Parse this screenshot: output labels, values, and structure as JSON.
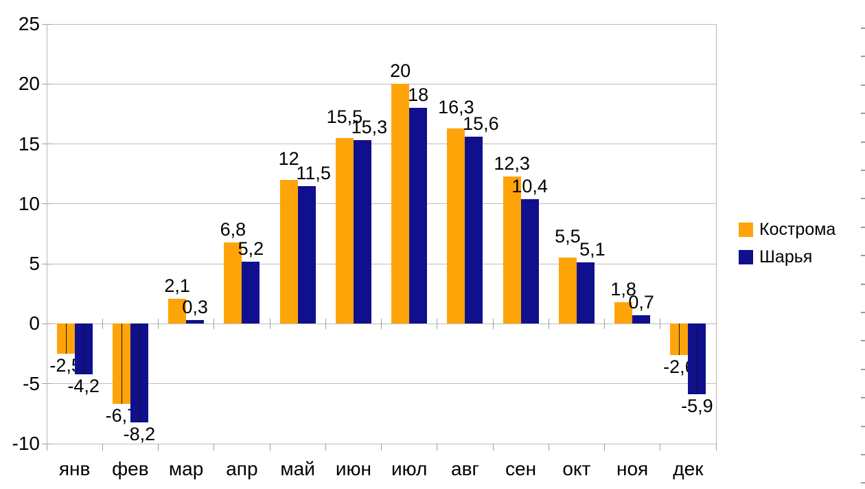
{
  "chart_data": {
    "type": "bar",
    "title": "",
    "categories": [
      "янв",
      "фев",
      "мар",
      "апр",
      "май",
      "июн",
      "июл",
      "авг",
      "сен",
      "окт",
      "ноя",
      "дек"
    ],
    "series": [
      {
        "name": "Кострома",
        "color": "#FFA408",
        "values": [
          -2.5,
          -6.7,
          2.1,
          6.8,
          12,
          15.5,
          20,
          16.3,
          12.3,
          5.5,
          1.8,
          -2.6
        ],
        "labels": [
          "-2,5",
          "-6,7",
          "2,1",
          "6,8",
          "12",
          "15,5",
          "20",
          "16,3",
          "12,3",
          "5,5",
          "1,8",
          "-2,6"
        ]
      },
      {
        "name": "Шарья",
        "color": "#10108E",
        "values": [
          -4.2,
          -8.2,
          0.3,
          5.2,
          11.5,
          15.3,
          18,
          15.6,
          10.4,
          5.1,
          0.7,
          -5.9
        ],
        "labels": [
          "-4,2",
          "-8,2",
          "0,3",
          "5,2",
          "11,5",
          "15,3",
          "18",
          "15,6",
          "10,4",
          "5,1",
          "0,7",
          "-5,9"
        ]
      }
    ],
    "ylim": [
      -10,
      25
    ],
    "yticks": [
      25,
      20,
      15,
      10,
      5,
      0,
      -5,
      -10
    ],
    "ytick_labels": [
      "25",
      "20",
      "15",
      "10",
      "5",
      "0",
      "-5",
      "-10"
    ],
    "grid": "horizontal-major",
    "legend_position": "right",
    "decimal_separator": ",",
    "background_color": "#ffffff",
    "gridline_color": "#bdbdbd"
  }
}
